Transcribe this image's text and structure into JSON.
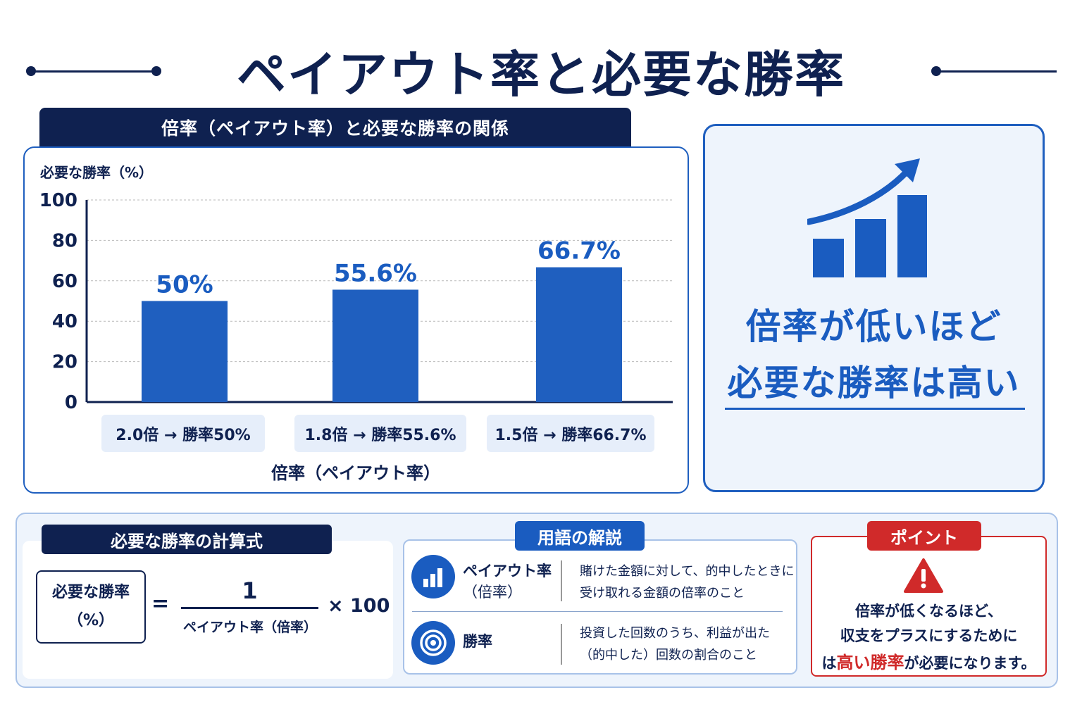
{
  "title": "ペイアウト率と必要な勝率",
  "chart_heading": "倍率（ペイアウト率）と必要な勝率の関係",
  "colors": {
    "navy": "#0f2150",
    "accent": "#1a5cc0",
    "bar": "#1f5fbf",
    "warn": "#d02a2a",
    "panel_bg": "#eef4fc"
  },
  "chart_data": {
    "type": "bar",
    "ylabel": "必要な勝率（%）",
    "xlabel": "倍率（ペイアウト率）",
    "ylim": [
      0,
      100
    ],
    "yticks": [
      "0",
      "20",
      "40",
      "60",
      "80",
      "100"
    ],
    "grid": true,
    "categories": [
      "2.0倍 → 勝率50%",
      "1.8倍 → 勝率55.6%",
      "1.5倍 → 勝率66.7%"
    ],
    "values": [
      50,
      55.6,
      66.7
    ],
    "value_labels": [
      "50%",
      "55.6%",
      "66.7%"
    ]
  },
  "message": {
    "line1": "倍率が低いほど",
    "line2": "必要な勝率は高い",
    "icon": "bar-chart-up-arrow-icon"
  },
  "formula": {
    "heading": "必要な勝率の計算式",
    "lhs_line1": "必要な勝率",
    "lhs_line2": "（%）",
    "equals": "=",
    "numerator": "1",
    "denominator": "ペイアウト率（倍率）",
    "times": "× 100"
  },
  "glossary": {
    "heading": "用語の解説",
    "items": [
      {
        "icon": "bar-chart-icon",
        "term_line1": "ペイアウト率",
        "term_line2": "（倍率）",
        "desc_line1": "賭けた金額に対して、的中したときに",
        "desc_line2": "受け取れる金額の倍率のこと"
      },
      {
        "icon": "target-icon",
        "term_line1": "勝率",
        "term_line2": "",
        "desc_line1": "投資した回数のうち、利益が出た",
        "desc_line2": "（的中した）回数の割合のこと"
      }
    ]
  },
  "point": {
    "heading": "ポイント",
    "icon": "warning-icon",
    "line1": "倍率が低くなるほど、",
    "line2": "収支をプラスにするために",
    "line3_pre": "は",
    "line3_red": "高い勝率",
    "line3_post": "が必要になります。"
  }
}
